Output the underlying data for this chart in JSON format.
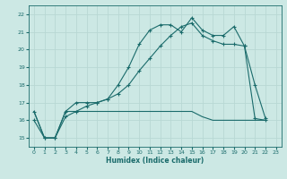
{
  "xlabel": "Humidex (Indice chaleur)",
  "bg_color": "#cce8e4",
  "line_color": "#1a6b6b",
  "grid_color": "#b8d8d4",
  "xlim": [
    -0.5,
    23.5
  ],
  "ylim": [
    14.5,
    22.5
  ],
  "xticks": [
    0,
    1,
    2,
    3,
    4,
    5,
    6,
    7,
    8,
    9,
    10,
    11,
    12,
    13,
    14,
    15,
    16,
    17,
    18,
    19,
    20,
    21,
    22,
    23
  ],
  "yticks": [
    15,
    16,
    17,
    18,
    19,
    20,
    21,
    22
  ],
  "series": [
    {
      "x": [
        0,
        1,
        2,
        3,
        4,
        5,
        6,
        7,
        8,
        9,
        10,
        11,
        12,
        13,
        14,
        15,
        16,
        17,
        18,
        19,
        20,
        21,
        22
      ],
      "y": [
        16.5,
        15.0,
        15.0,
        16.5,
        17.0,
        17.0,
        17.0,
        17.2,
        18.0,
        19.0,
        20.3,
        21.1,
        21.4,
        21.4,
        21.0,
        21.8,
        21.1,
        20.8,
        20.8,
        21.3,
        20.2,
        18.0,
        16.1
      ],
      "marker": true
    },
    {
      "x": [
        0,
        1,
        2,
        3,
        4,
        5,
        6,
        7,
        8,
        9,
        10,
        11,
        12,
        13,
        14,
        15,
        16,
        17,
        18,
        19,
        20,
        21,
        22
      ],
      "y": [
        16.0,
        15.0,
        15.0,
        16.2,
        16.5,
        16.8,
        17.0,
        17.2,
        17.5,
        18.0,
        18.8,
        19.5,
        20.2,
        20.8,
        21.3,
        21.5,
        20.8,
        20.5,
        20.3,
        20.3,
        20.2,
        16.1,
        16.0
      ],
      "marker": true
    },
    {
      "x": [
        0,
        1,
        2,
        3,
        4,
        5,
        6,
        7,
        8,
        9,
        10,
        11,
        12,
        13,
        14,
        15,
        16,
        17,
        18,
        19,
        20,
        21,
        22
      ],
      "y": [
        16.5,
        15.0,
        15.0,
        16.5,
        16.5,
        16.5,
        16.5,
        16.5,
        16.5,
        16.5,
        16.5,
        16.5,
        16.5,
        16.5,
        16.5,
        16.5,
        16.2,
        16.0,
        16.0,
        16.0,
        16.0,
        16.0,
        16.0
      ],
      "marker": false
    }
  ]
}
